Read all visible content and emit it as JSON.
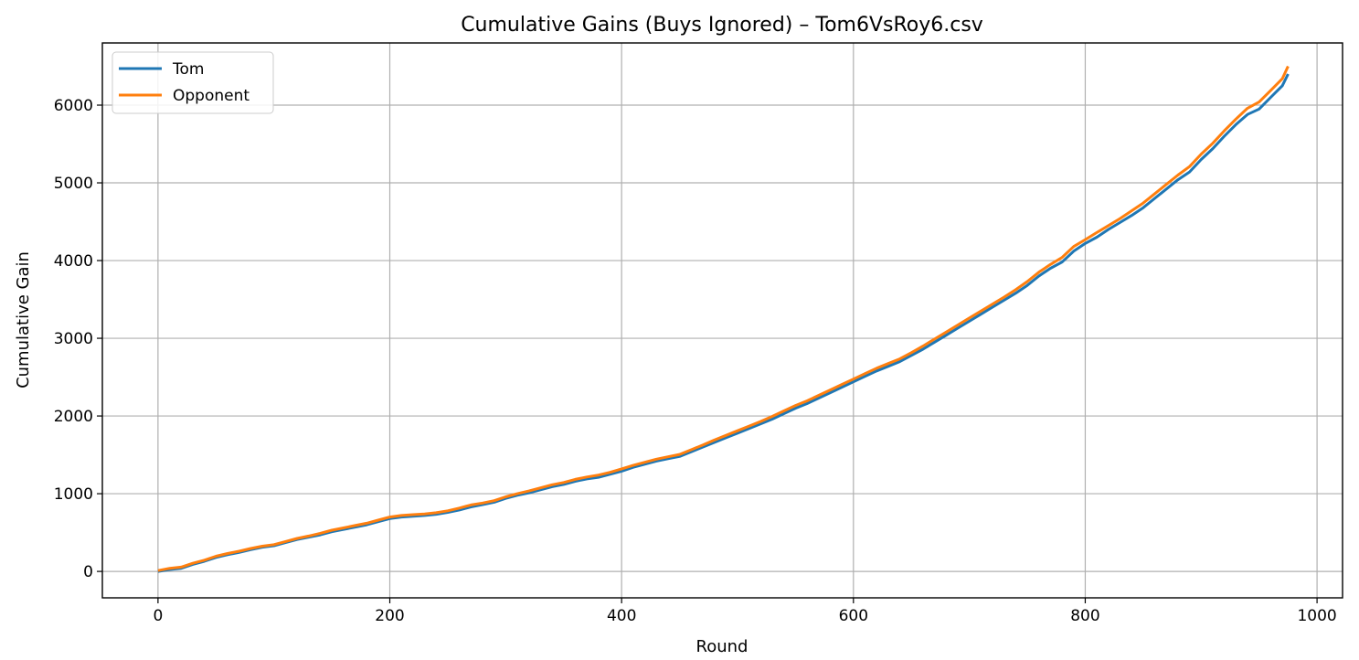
{
  "chart_data": {
    "type": "line",
    "title": "Cumulative Gains (Buys Ignored) – Tom6VsRoy6.csv",
    "xlabel": "Round",
    "ylabel": "Cumulative Gain",
    "xlim": [
      -48,
      1022
    ],
    "ylim": [
      -340,
      6800
    ],
    "xticks": [
      0,
      200,
      400,
      600,
      800,
      1000
    ],
    "yticks": [
      0,
      1000,
      2000,
      3000,
      4000,
      5000,
      6000
    ],
    "grid": true,
    "legend_position": "top-left",
    "series": [
      {
        "name": "Tom",
        "color": "#1f77b4",
        "x": [
          0,
          10,
          20,
          30,
          40,
          50,
          60,
          70,
          80,
          90,
          100,
          110,
          120,
          130,
          140,
          150,
          160,
          170,
          180,
          190,
          200,
          210,
          220,
          230,
          240,
          250,
          260,
          270,
          280,
          290,
          300,
          310,
          320,
          330,
          340,
          350,
          360,
          370,
          380,
          390,
          400,
          410,
          420,
          430,
          440,
          450,
          460,
          470,
          480,
          490,
          500,
          510,
          520,
          530,
          540,
          550,
          560,
          570,
          580,
          590,
          600,
          610,
          620,
          630,
          640,
          650,
          660,
          670,
          680,
          690,
          700,
          710,
          720,
          730,
          740,
          750,
          760,
          770,
          780,
          790,
          800,
          810,
          820,
          830,
          840,
          850,
          860,
          870,
          880,
          890,
          900,
          910,
          920,
          930,
          940,
          950,
          960,
          970,
          975
        ],
        "y": [
          0,
          25,
          40,
          90,
          130,
          180,
          215,
          245,
          280,
          310,
          330,
          370,
          410,
          440,
          470,
          510,
          540,
          570,
          600,
          640,
          680,
          700,
          710,
          720,
          735,
          760,
          790,
          830,
          860,
          890,
          940,
          980,
          1010,
          1050,
          1090,
          1120,
          1160,
          1190,
          1210,
          1250,
          1290,
          1340,
          1380,
          1420,
          1450,
          1480,
          1540,
          1600,
          1660,
          1720,
          1780,
          1840,
          1900,
          1960,
          2030,
          2100,
          2160,
          2230,
          2300,
          2370,
          2440,
          2510,
          2580,
          2640,
          2700,
          2780,
          2860,
          2950,
          3040,
          3130,
          3220,
          3310,
          3400,
          3490,
          3580,
          3680,
          3800,
          3900,
          3980,
          4120,
          4220,
          4300,
          4400,
          4490,
          4580,
          4680,
          4800,
          4920,
          5040,
          5140,
          5300,
          5440,
          5600,
          5750,
          5880,
          5950,
          6100,
          6250,
          6400
        ]
      },
      {
        "name": "Opponent",
        "color": "#ff7f0e",
        "x": [
          0,
          10,
          20,
          30,
          40,
          50,
          60,
          70,
          80,
          90,
          100,
          110,
          120,
          130,
          140,
          150,
          160,
          170,
          180,
          190,
          200,
          210,
          220,
          230,
          240,
          250,
          260,
          270,
          280,
          290,
          300,
          310,
          320,
          330,
          340,
          350,
          360,
          370,
          380,
          390,
          400,
          410,
          420,
          430,
          440,
          450,
          460,
          470,
          480,
          490,
          500,
          510,
          520,
          530,
          540,
          550,
          560,
          570,
          580,
          590,
          600,
          610,
          620,
          630,
          640,
          650,
          660,
          670,
          680,
          690,
          700,
          710,
          720,
          730,
          740,
          750,
          760,
          770,
          780,
          790,
          800,
          810,
          820,
          830,
          840,
          850,
          860,
          870,
          880,
          890,
          900,
          910,
          920,
          930,
          940,
          950,
          960,
          970,
          975
        ],
        "y": [
          10,
          40,
          55,
          105,
          145,
          195,
          230,
          260,
          295,
          325,
          345,
          385,
          425,
          455,
          490,
          530,
          560,
          590,
          620,
          660,
          700,
          720,
          730,
          740,
          755,
          780,
          815,
          855,
          880,
          910,
          960,
          1000,
          1035,
          1075,
          1115,
          1145,
          1185,
          1215,
          1240,
          1275,
          1320,
          1365,
          1405,
          1445,
          1475,
          1505,
          1565,
          1625,
          1690,
          1750,
          1810,
          1870,
          1930,
          1995,
          2065,
          2135,
          2195,
          2265,
          2335,
          2405,
          2475,
          2545,
          2615,
          2675,
          2735,
          2815,
          2900,
          2990,
          3080,
          3170,
          3260,
          3350,
          3440,
          3530,
          3625,
          3730,
          3850,
          3950,
          4040,
          4180,
          4270,
          4360,
          4450,
          4540,
          4640,
          4740,
          4860,
          4980,
          5100,
          5210,
          5370,
          5510,
          5670,
          5820,
          5960,
          6040,
          6190,
          6340,
          6500
        ]
      }
    ]
  }
}
